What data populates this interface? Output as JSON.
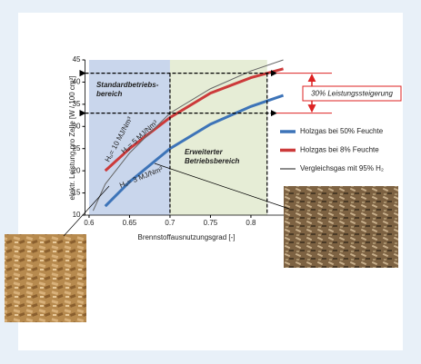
{
  "chart_data": {
    "type": "line",
    "x_label": "Brennstoffausnutzungsgrad [-]",
    "y_label": "elektr. Leistung pro Zelle [W / 100 cm²]",
    "xlim": [
      0.595,
      0.845
    ],
    "xticks": [
      0.6,
      0.65,
      0.7,
      0.75,
      0.8
    ],
    "ylim": [
      10,
      45
    ],
    "yticks": [
      10,
      15,
      20,
      25,
      30,
      35,
      40,
      45
    ],
    "regions": [
      {
        "lines": [
          "Standardbetriebs-",
          "bereich"
        ],
        "xlim": [
          0.6,
          0.7
        ],
        "color": "#c9d6ec",
        "text_color": "#4a78c0"
      },
      {
        "lines": [
          "Erweiterter",
          "Betriebsbereich"
        ],
        "xlim": [
          0.7,
          0.82
        ],
        "color": "#e6edd6",
        "text_color": "#8aa24a"
      }
    ],
    "reference_y": [
      42,
      33
    ],
    "reference_x": [
      0.7,
      0.82
    ],
    "increase_label": "30% Leistungssteigerung",
    "series": [
      {
        "name": "Holzgas bei 50% Feuchte",
        "color": "#3d74b8",
        "width": 3,
        "x": [
          0.62,
          0.65,
          0.7,
          0.75,
          0.8,
          0.84
        ],
        "values": [
          12,
          17.5,
          25,
          30.5,
          34.5,
          37
        ]
      },
      {
        "name": "Holzgas bei 8% Feuchte",
        "color": "#cc3a3a",
        "width": 3,
        "x": [
          0.62,
          0.65,
          0.7,
          0.75,
          0.8,
          0.84
        ],
        "values": [
          20,
          25,
          32,
          37.5,
          41,
          43
        ]
      },
      {
        "name": "Vergleichsgas mit 95% H₂",
        "color": "#666666",
        "width": 1,
        "x": [
          0.605,
          0.62,
          0.65,
          0.7,
          0.75,
          0.8,
          0.84
        ],
        "values": [
          11,
          17,
          24,
          33,
          38.5,
          42.5,
          45
        ]
      }
    ],
    "annotations": [
      "Hᵤ= 10 MJ/Nm³",
      "Hᵤ= 5 MJ/Nm³",
      "Hᵤ= 3 MJ/Nm³"
    ]
  }
}
